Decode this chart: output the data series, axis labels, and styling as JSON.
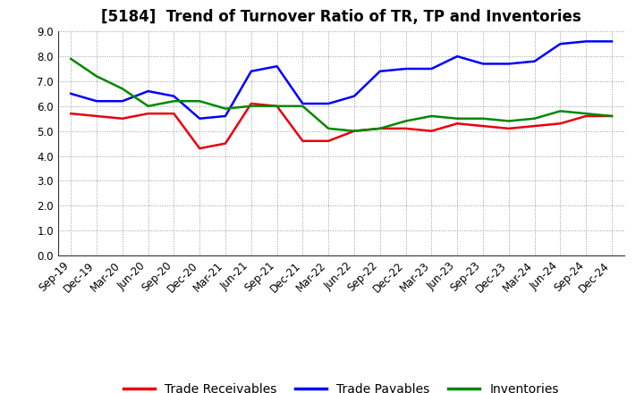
{
  "title": "[5184]  Trend of Turnover Ratio of TR, TP and Inventories",
  "x_labels": [
    "Sep-19",
    "Dec-19",
    "Mar-20",
    "Jun-20",
    "Sep-20",
    "Dec-20",
    "Mar-21",
    "Jun-21",
    "Sep-21",
    "Dec-21",
    "Mar-22",
    "Jun-22",
    "Sep-22",
    "Dec-22",
    "Mar-23",
    "Jun-23",
    "Sep-23",
    "Dec-23",
    "Mar-24",
    "Jun-24",
    "Sep-24",
    "Dec-24"
  ],
  "trade_receivables": [
    5.7,
    5.6,
    5.5,
    5.7,
    5.7,
    4.3,
    4.5,
    6.1,
    6.0,
    4.6,
    4.6,
    5.0,
    5.1,
    5.1,
    5.0,
    5.3,
    5.2,
    5.1,
    5.2,
    5.3,
    5.6,
    5.6
  ],
  "trade_payables": [
    6.5,
    6.2,
    6.2,
    6.6,
    6.4,
    5.5,
    5.6,
    7.4,
    7.6,
    6.1,
    6.1,
    6.4,
    7.4,
    7.5,
    7.5,
    8.0,
    7.7,
    7.7,
    7.8,
    8.5,
    8.6,
    8.6
  ],
  "inventories": [
    7.9,
    7.2,
    6.7,
    6.0,
    6.2,
    6.2,
    5.9,
    6.0,
    6.0,
    6.0,
    5.1,
    5.0,
    5.1,
    5.4,
    5.6,
    5.5,
    5.5,
    5.4,
    5.5,
    5.8,
    5.7,
    5.6
  ],
  "ylim": [
    0.0,
    9.0
  ],
  "yticks": [
    0.0,
    1.0,
    2.0,
    3.0,
    4.0,
    5.0,
    6.0,
    7.0,
    8.0,
    9.0
  ],
  "color_receivables": "#e8000d",
  "color_payables": "#0000ff",
  "color_inventories": "#008800",
  "legend_labels": [
    "Trade Receivables",
    "Trade Payables",
    "Inventories"
  ],
  "background_color": "#ffffff",
  "plot_bg_color": "#ffffff",
  "linewidth": 1.8,
  "title_fontsize": 12,
  "tick_fontsize": 8.5,
  "legend_fontsize": 10
}
